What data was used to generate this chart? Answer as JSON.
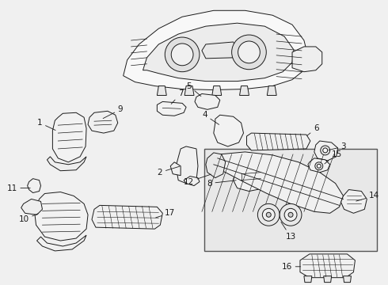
{
  "bg_color": "#f0f0f0",
  "line_color": "#1a1a1a",
  "fill_color": "#ffffff",
  "label_color": "#111111",
  "box_fill": "#e8e8e8",
  "fig_width": 4.9,
  "fig_height": 3.6,
  "dpi": 100,
  "font_size": 7.5
}
